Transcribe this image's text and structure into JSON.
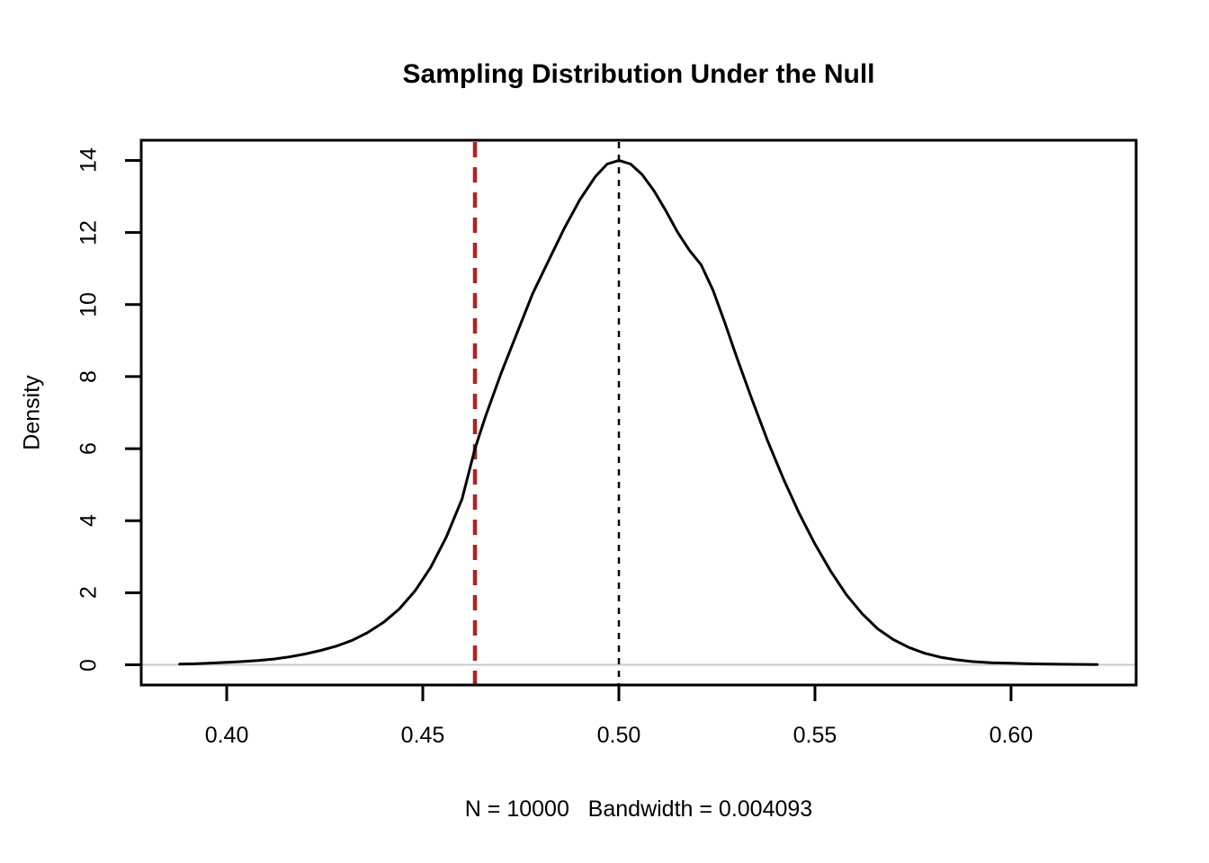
{
  "chart_data": {
    "type": "line",
    "title": "Sampling Distribution Under the Null",
    "xlabel": "N = 10000   Bandwidth = 0.004093",
    "ylabel": "Density",
    "grid": false,
    "legend": "none",
    "x_axis": {
      "domain": [
        0.3782,
        0.6319
      ],
      "ticks": [
        0.4,
        0.45,
        0.5,
        0.55,
        0.6
      ],
      "tick_labels": [
        "0.40",
        "0.45",
        "0.50",
        "0.55",
        "0.60"
      ]
    },
    "y_axis": {
      "domain": [
        -0.56,
        14.56
      ],
      "ticks": [
        0,
        2,
        4,
        6,
        8,
        10,
        12,
        14
      ],
      "tick_labels": [
        "0",
        "2",
        "4",
        "6",
        "8",
        "10",
        "12",
        "14"
      ]
    },
    "baseline": {
      "y": 0,
      "color": "#c8c8c8"
    },
    "series": [
      {
        "name": "density-curve",
        "color": "#000000",
        "x": [
          0.388,
          0.392,
          0.396,
          0.4,
          0.404,
          0.408,
          0.412,
          0.416,
          0.42,
          0.424,
          0.428,
          0.432,
          0.436,
          0.44,
          0.444,
          0.448,
          0.452,
          0.456,
          0.46,
          0.4633,
          0.466,
          0.47,
          0.474,
          0.478,
          0.482,
          0.486,
          0.49,
          0.494,
          0.497,
          0.5,
          0.503,
          0.506,
          0.509,
          0.512,
          0.515,
          0.518,
          0.521,
          0.524,
          0.527,
          0.53,
          0.534,
          0.538,
          0.542,
          0.546,
          0.55,
          0.554,
          0.558,
          0.562,
          0.566,
          0.57,
          0.574,
          0.578,
          0.582,
          0.586,
          0.59,
          0.595,
          0.6,
          0.605,
          0.61,
          0.615,
          0.622
        ],
        "y": [
          0.02,
          0.03,
          0.05,
          0.07,
          0.09,
          0.12,
          0.16,
          0.22,
          0.3,
          0.4,
          0.52,
          0.68,
          0.9,
          1.18,
          1.55,
          2.05,
          2.7,
          3.55,
          4.6,
          6.0,
          6.9,
          8.1,
          9.2,
          10.3,
          11.2,
          12.1,
          12.9,
          13.55,
          13.9,
          14.0,
          13.9,
          13.6,
          13.15,
          12.6,
          12.0,
          11.5,
          11.1,
          10.4,
          9.5,
          8.55,
          7.35,
          6.2,
          5.15,
          4.2,
          3.35,
          2.6,
          1.95,
          1.42,
          1.0,
          0.7,
          0.48,
          0.32,
          0.21,
          0.14,
          0.09,
          0.06,
          0.045,
          0.03,
          0.02,
          0.015,
          0.01
        ]
      }
    ],
    "vlines": [
      {
        "name": "red-dashed-vline",
        "x": 0.4633,
        "color": "#b22222",
        "style": "dashed",
        "width": 4.5,
        "dash": "17 11"
      },
      {
        "name": "black-dashed-vline",
        "x": 0.5,
        "color": "#000000",
        "style": "dashed",
        "width": 2.5,
        "dash": "7 7"
      }
    ],
    "peak": {
      "x": 0.5,
      "y": 14
    }
  }
}
